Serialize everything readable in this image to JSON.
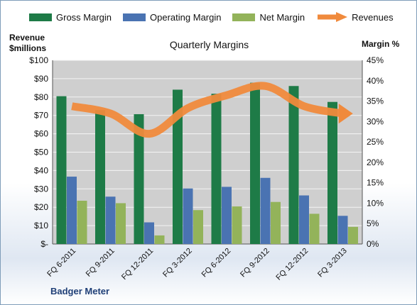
{
  "legend": {
    "gross": "Gross Margin",
    "operating": "Operating Margin",
    "net": "Net Margin",
    "revenues": "Revenues"
  },
  "left_axis_title": {
    "line1": "Revenue",
    "line2": "$millions"
  },
  "right_axis_title": "Margin %",
  "title": "Quarterly Margins",
  "brand": "Badger Meter",
  "colors": {
    "gross": "#1e7b47",
    "operating": "#4a73b2",
    "net": "#93b35a",
    "revenues": "#f08a3c",
    "plot_bg": "#cfcfcf"
  },
  "chart_data": {
    "type": "bar",
    "categories": [
      "FQ 6-2011",
      "FQ 9-2011",
      "FQ 12-2011",
      "FQ 3-2012",
      "FQ 6-2012",
      "FQ 9-2012",
      "FQ 12-2012",
      "FQ 3-2013"
    ],
    "series": [
      {
        "name": "Gross Margin",
        "axis": "right",
        "unit": "%",
        "values": [
          36.2,
          32.8,
          31.8,
          37.8,
          36.8,
          39.5,
          38.7,
          34.8
        ]
      },
      {
        "name": "Operating Margin",
        "axis": "right",
        "unit": "%",
        "values": [
          16.5,
          11.6,
          5.3,
          13.6,
          14.0,
          16.2,
          11.9,
          6.9
        ]
      },
      {
        "name": "Net Margin",
        "axis": "right",
        "unit": "%",
        "values": [
          10.6,
          10.0,
          2.1,
          8.3,
          9.2,
          10.3,
          7.4,
          4.2
        ]
      },
      {
        "name": "Revenues",
        "axis": "left",
        "type": "line",
        "unit": "$M",
        "values": [
          75,
          71,
          60,
          74,
          81,
          86,
          75,
          71
        ]
      }
    ],
    "left_axis": {
      "min": 0,
      "max": 100,
      "step": 10,
      "labels": [
        "$-",
        "$10",
        "$20",
        "$30",
        "$40",
        "$50",
        "$60",
        "$70",
        "$80",
        "$90",
        "$100"
      ]
    },
    "right_axis": {
      "min": 0,
      "max": 45,
      "step": 5,
      "labels": [
        "0%",
        "5%",
        "10%",
        "15%",
        "20%",
        "25%",
        "30%",
        "35%",
        "40%",
        "45%"
      ]
    },
    "grid": true,
    "legend_position": "top"
  }
}
